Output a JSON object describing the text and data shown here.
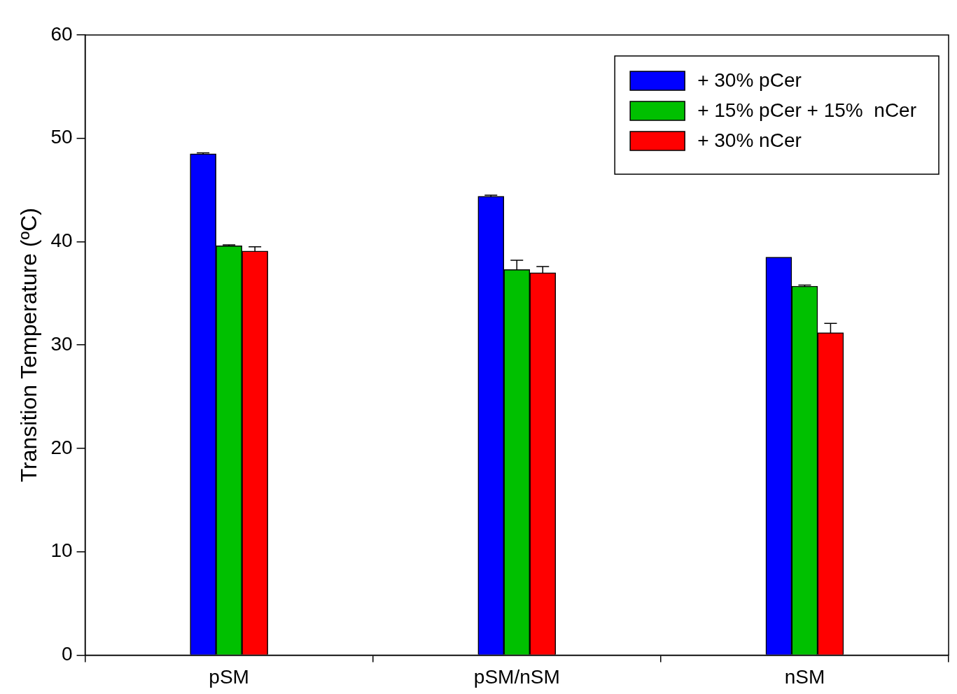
{
  "chart_data": {
    "type": "bar",
    "ylabel": "Transition Temperature (ºC)",
    "categories": [
      "pSM",
      "pSM/nSM",
      "nSM"
    ],
    "series": [
      {
        "name": "+ 30% pCer",
        "color": "#0000ff",
        "values": [
          48.5,
          44.4,
          38.5
        ],
        "errors": [
          0.1,
          0.1,
          null
        ]
      },
      {
        "name": "+ 15% pCer + 15%  nCer",
        "color": "#00c000",
        "values": [
          39.6,
          37.3,
          35.7
        ],
        "errors": [
          0.1,
          0.9,
          0.1
        ]
      },
      {
        "name": "+ 30% nCer",
        "color": "#ff0000",
        "values": [
          39.1,
          37.0,
          31.2
        ],
        "errors": [
          0.4,
          0.6,
          0.9
        ]
      }
    ],
    "ylim": [
      0,
      60
    ],
    "yticks": [
      0,
      10,
      20,
      30,
      40,
      50,
      60
    ],
    "legend": "top right"
  }
}
